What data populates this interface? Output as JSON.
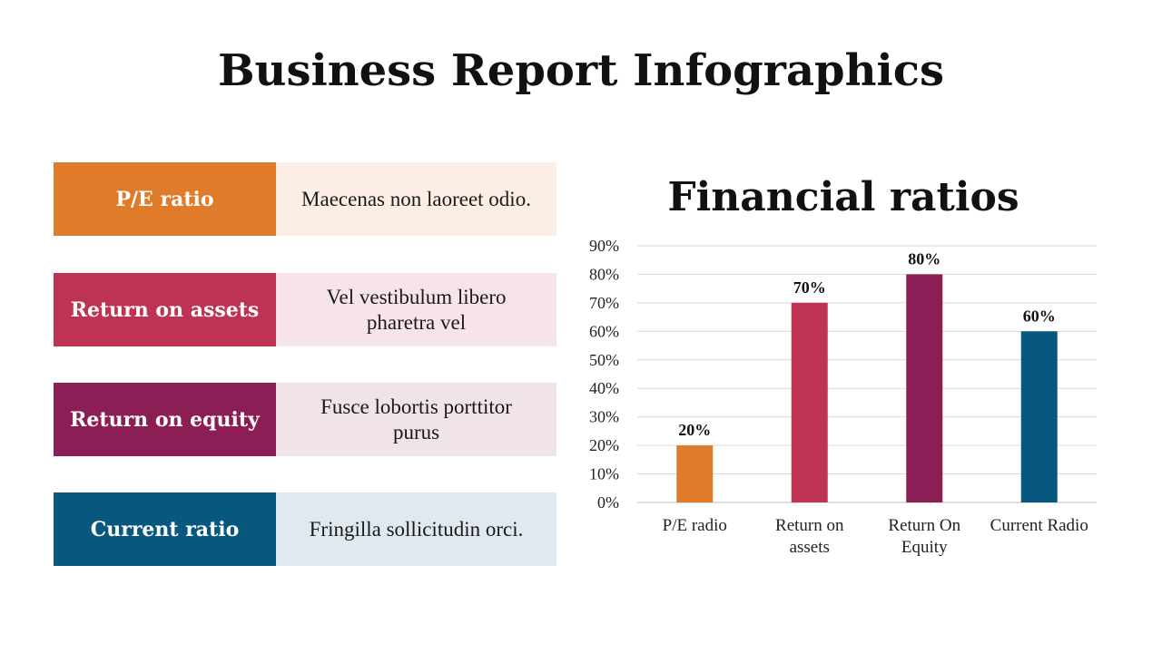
{
  "title": "Business Report Infographics",
  "rows": [
    {
      "label": "P/E ratio",
      "text": "Maecenas non laoreet odio.",
      "color": "#E07B2A",
      "bg": "#FCEEE4"
    },
    {
      "label": "Return on assets",
      "text": "Vel vestibulum libero pharetra  vel",
      "color": "#BE3253",
      "bg": "#F7E4E8"
    },
    {
      "label": "Return on equity",
      "text": "Fusce lobortis porttitor purus",
      "color": "#8B1E54",
      "bg": "#F0E3E9"
    },
    {
      "label": "Current ratio",
      "text": "Fringilla sollicitudin orci.",
      "color": "#07577E",
      "bg": "#E1E9F0"
    }
  ],
  "chart_data": {
    "type": "bar",
    "title": "Financial ratios",
    "categories": [
      [
        "P/E radio"
      ],
      [
        "Return on",
        "assets"
      ],
      [
        "Return On",
        "Equity"
      ],
      [
        "Current Radio"
      ]
    ],
    "values": [
      20,
      70,
      80,
      60
    ],
    "data_labels": [
      "20%",
      "70%",
      "80%",
      "60%"
    ],
    "colors": [
      "#E07B2A",
      "#BE3253",
      "#8B1E54",
      "#07577E"
    ],
    "ylim": [
      0,
      90
    ],
    "yticks": [
      "0%",
      "10%",
      "20%",
      "30%",
      "40%",
      "50%",
      "60%",
      "70%",
      "80%",
      "90%"
    ],
    "grid": true,
    "xlabel": "",
    "ylabel": ""
  }
}
